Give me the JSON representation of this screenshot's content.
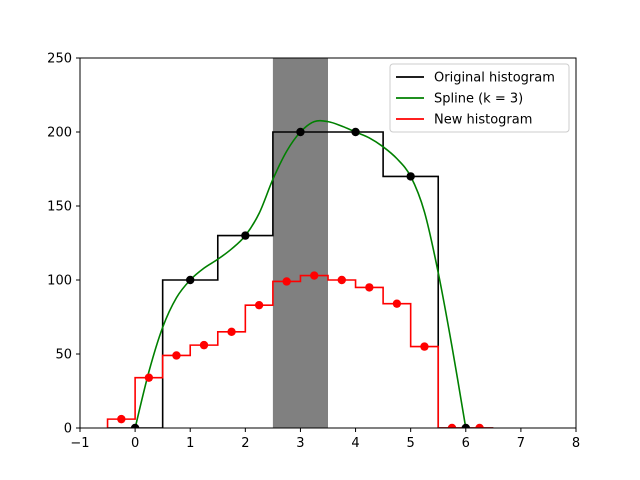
{
  "chart_data": {
    "type": "line",
    "title": "",
    "xlabel": "",
    "ylabel": "",
    "xlim": [
      -1,
      8
    ],
    "ylim": [
      0,
      250
    ],
    "xticks": [
      -1,
      0,
      1,
      2,
      3,
      4,
      5,
      6,
      7,
      8
    ],
    "yticks": [
      0,
      50,
      100,
      150,
      200,
      250
    ],
    "grid": false,
    "legend_position": "top-right",
    "shaded_region": {
      "x": [
        2.5,
        3.5
      ],
      "color": "#808080"
    },
    "series": [
      {
        "name": "Original histogram",
        "kind": "step",
        "color": "#000000",
        "bin_edges": [
          -0.5,
          0.5,
          1.5,
          2.5,
          3.5,
          4.5,
          5.5,
          6.5
        ],
        "counts": [
          0,
          100,
          130,
          200,
          200,
          170,
          0
        ],
        "points": {
          "x": [
            0,
            1,
            2,
            3,
            4,
            5,
            6
          ],
          "y": [
            0,
            100,
            130,
            200,
            200,
            170,
            0
          ]
        }
      },
      {
        "name": "Spline (k = 3)",
        "kind": "line",
        "color": "#008000",
        "x": [
          0,
          0.25,
          0.5,
          0.75,
          1,
          1.25,
          1.5,
          1.75,
          2,
          2.25,
          2.5,
          2.75,
          3,
          3.25,
          3.5,
          3.75,
          4,
          4.25,
          4.5,
          4.75,
          5,
          5.25,
          5.5,
          5.75,
          6
        ],
        "y": [
          0,
          38,
          68,
          88,
          100,
          108,
          114,
          121,
          130,
          145,
          168,
          187,
          200,
          207,
          207,
          204,
          200,
          196,
          190,
          182,
          170,
          146,
          105,
          55,
          0
        ]
      },
      {
        "name": "New histogram",
        "kind": "step",
        "color": "#ff0000",
        "bin_edges": [
          -0.5,
          0,
          0.5,
          1,
          1.5,
          2,
          2.5,
          3,
          3.5,
          4,
          4.5,
          5,
          5.5,
          6,
          6.5
        ],
        "counts": [
          6,
          34,
          49,
          56,
          65,
          83,
          99,
          103,
          100,
          95,
          84,
          55,
          0,
          0
        ],
        "points": {
          "x": [
            -0.25,
            0.25,
            0.75,
            1.25,
            1.75,
            2.25,
            2.75,
            3.25,
            3.75,
            4.25,
            4.75,
            5.25,
            5.75,
            6.25
          ],
          "y": [
            6,
            34,
            49,
            56,
            65,
            83,
            99,
            103,
            100,
            95,
            84,
            55,
            0,
            0
          ]
        }
      }
    ]
  }
}
